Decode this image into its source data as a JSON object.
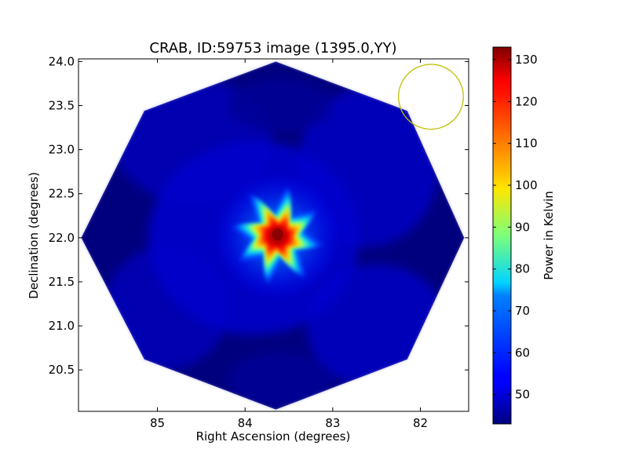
{
  "chart_data": {
    "type": "heatmap",
    "title": "CRAB, ID:59753 image (1395.0,YY)",
    "xlabel": "Right Ascension (degrees)",
    "ylabel": "Declination (degrees)",
    "xlim": [
      85.9,
      81.45
    ],
    "ylim": [
      20.03,
      24.03
    ],
    "x_ticks": [
      85,
      84,
      83,
      82
    ],
    "y_ticks": [
      20.5,
      21.0,
      21.5,
      22.0,
      22.5,
      23.0,
      23.5,
      24.0
    ],
    "x_tick_labels": [
      "85",
      "84",
      "83",
      "82"
    ],
    "y_tick_labels": [
      "20.5",
      "21.0",
      "21.5",
      "22.0",
      "22.5",
      "23.0",
      "23.5",
      "24.0"
    ],
    "colorbar": {
      "label": "Power in Kelvin",
      "range": [
        43,
        133
      ],
      "ticks": [
        50,
        60,
        70,
        80,
        90,
        100,
        110,
        120,
        130
      ],
      "tick_labels": [
        "50",
        "60",
        "70",
        "80",
        "90",
        "100",
        "110",
        "120",
        "130"
      ],
      "colormap": "jet"
    },
    "field_of_view": {
      "shape": "octagon",
      "vertices": [
        [
          83.65,
          24.0
        ],
        [
          82.15,
          23.44
        ],
        [
          81.5,
          22.0
        ],
        [
          82.15,
          20.62
        ],
        [
          83.65,
          20.05
        ],
        [
          85.15,
          20.62
        ],
        [
          85.87,
          22.0
        ],
        [
          85.15,
          23.44
        ]
      ],
      "background_kelvin": 46
    },
    "source": {
      "ra": 83.63,
      "dec": 22.02,
      "peak_kelvin": 132,
      "spikes": 8,
      "extent_deg": 0.55
    },
    "beam_circle": {
      "ra": 81.88,
      "dec": 23.6,
      "radius_deg": 0.37,
      "color": "#bfbf00"
    },
    "grid": false,
    "legend": "none"
  }
}
